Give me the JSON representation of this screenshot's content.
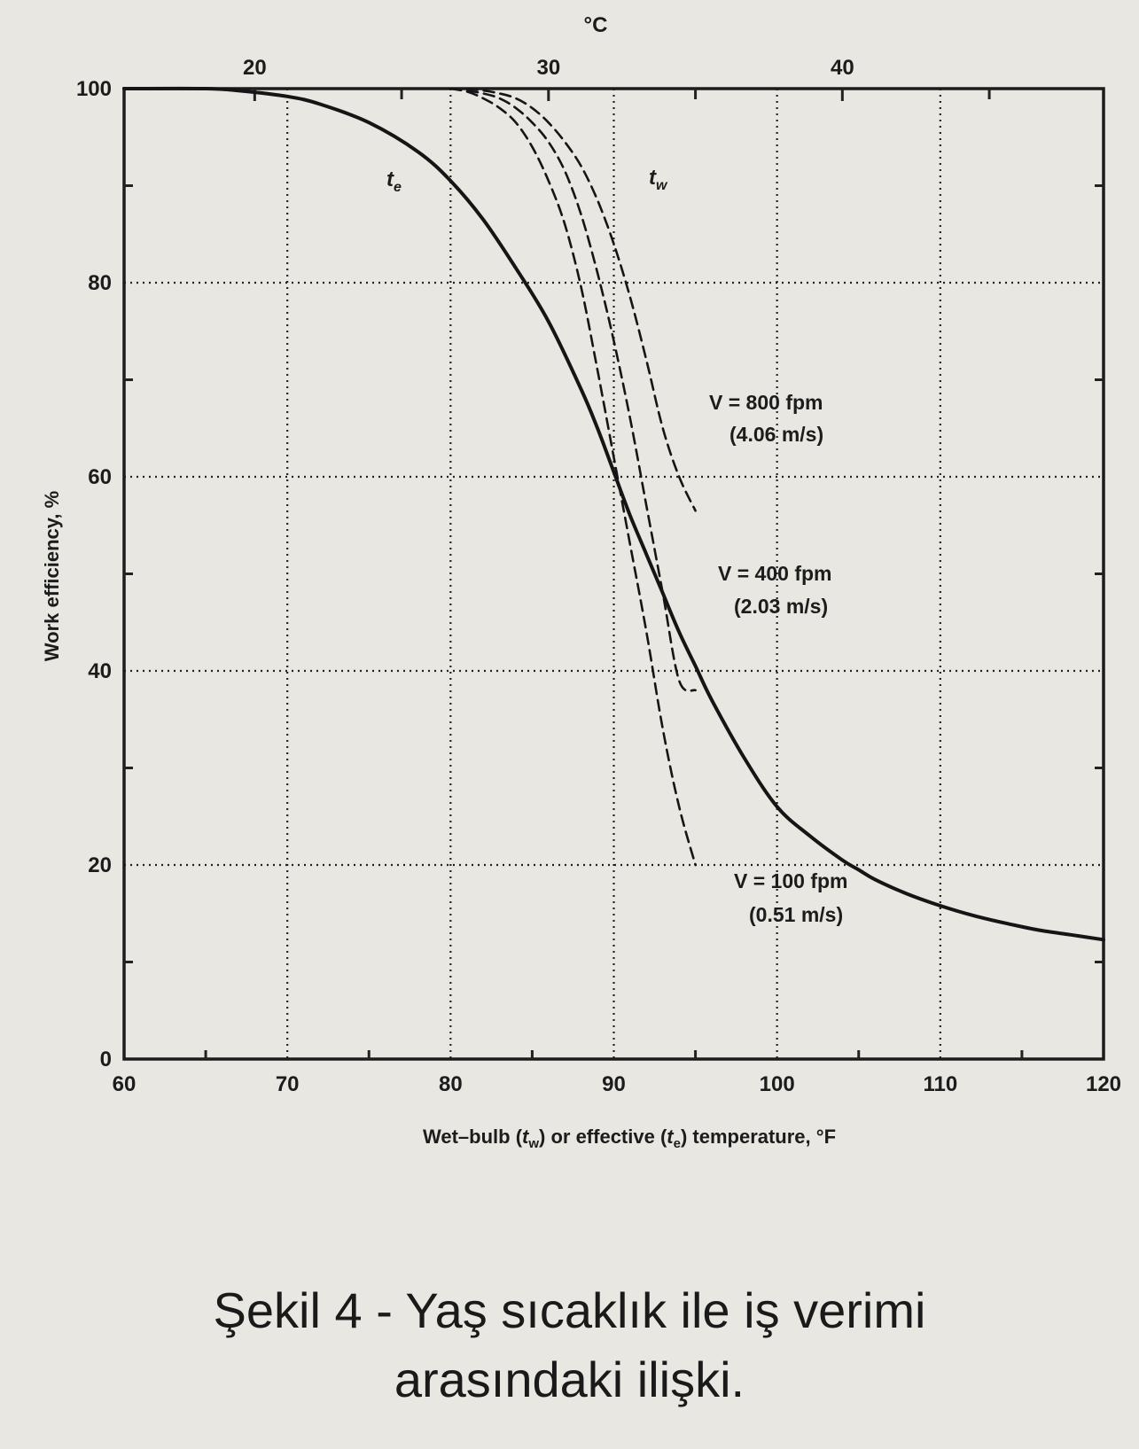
{
  "chart_data": {
    "type": "line",
    "title": "",
    "top_axis_label": "°C",
    "xlabel": "Wet–bulb (t_w) or effective (t_e) temperature, °F",
    "xlabel_parts": {
      "a": "Wet–bulb (",
      "b": "t",
      "b_sub": "w",
      "c": ") or effective (",
      "d": "t",
      "d_sub": "e",
      "e": ") temperature, °F"
    },
    "ylabel": "Work efficiency, %",
    "xlim": [
      60,
      120
    ],
    "ylim": [
      0,
      100
    ],
    "x_ticks": [
      "60",
      "70",
      "80",
      "90",
      "100",
      "110",
      "120"
    ],
    "y_ticks": [
      "0",
      "20",
      "40",
      "60",
      "80",
      "100"
    ],
    "top_ticks": [
      "20",
      "30",
      "40"
    ],
    "grid": true,
    "series": [
      {
        "name": "t_e",
        "label_main": "t",
        "label_sub": "e",
        "style": "solid",
        "x": [
          60,
          65,
          67,
          70,
          72,
          75,
          78,
          80,
          82,
          84,
          86,
          88,
          89,
          90,
          91,
          92,
          93,
          94,
          95,
          96,
          98,
          100,
          102,
          104,
          105,
          106,
          108,
          110,
          112,
          114,
          116,
          118,
          120
        ],
        "y": [
          100,
          100,
          99.8,
          99.2,
          98.4,
          96.5,
          93.5,
          90.5,
          86.5,
          81.5,
          76,
          69,
          65,
          60.5,
          56,
          52,
          48,
          44,
          40.5,
          37,
          31,
          26,
          23,
          20.5,
          19.5,
          18.5,
          17,
          15.8,
          14.8,
          14,
          13.3,
          12.8,
          12.3
        ]
      },
      {
        "name": "V = 800 fpm (4.06 m/s)",
        "group_label_main": "t",
        "group_label_sub": "w",
        "style": "dashed",
        "x": [
          81,
          82,
          83,
          84,
          85,
          86,
          87,
          88,
          89,
          90,
          91,
          92,
          93,
          94,
          95
        ],
        "y": [
          100,
          99.8,
          99.5,
          99,
          98,
          96.5,
          94.5,
          92,
          88.5,
          84,
          78.5,
          72,
          65,
          60,
          56.5
        ]
      },
      {
        "name": "V = 400 fpm (2.03 m/s)",
        "style": "dashed",
        "x": [
          80,
          81,
          82,
          83,
          84,
          85,
          86,
          87,
          88,
          89,
          90,
          91,
          92,
          93,
          94,
          95
        ],
        "y": [
          100,
          99.8,
          99.5,
          99,
          98,
          96.5,
          94.5,
          91.5,
          87,
          81,
          74,
          66,
          57,
          48,
          39,
          38
        ]
      },
      {
        "name": "V = 100 fpm (0.51 m/s)",
        "style": "dashed",
        "x": [
          80,
          81,
          82,
          83,
          84,
          85,
          86,
          87,
          88,
          89,
          90,
          91,
          92,
          93,
          94,
          95
        ],
        "y": [
          100,
          99.7,
          99,
          98,
          96.5,
          94,
          90.5,
          86,
          79.5,
          71,
          62,
          53,
          44,
          34,
          26,
          20
        ]
      }
    ],
    "annotations": [
      {
        "line1": "V = 800 fpm",
        "line2": "(4.06 m/s)"
      },
      {
        "line1": "V = 400 fpm",
        "line2": "(2.03 m/s)"
      },
      {
        "line1": "V = 100 fpm",
        "line2": "(0.51 m/s)"
      }
    ]
  },
  "caption": {
    "line1": "Şekil 4 - Yaş sıcaklık ile iş verimi",
    "line2": "arasındaki ilişki."
  }
}
